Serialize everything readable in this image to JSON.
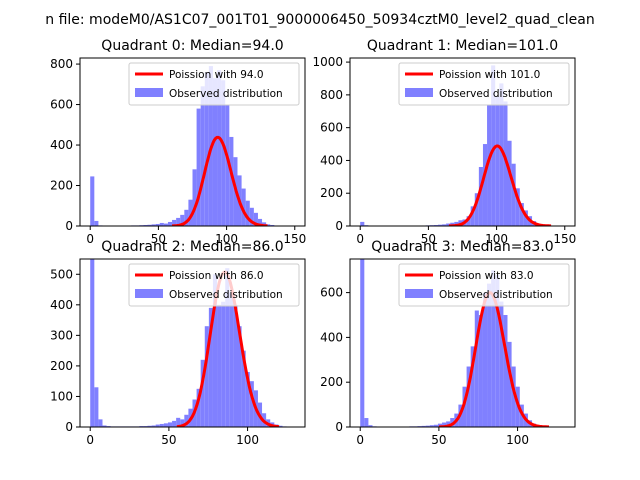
{
  "figure": {
    "suptitle": "n file: modeM0/AS1C07_001T01_9000006450_50934cztM0_level2_quad_clean"
  },
  "colors": {
    "hist": "#8080ff",
    "poisson": "#ff0000",
    "axis": "#000000",
    "background": "#ffffff"
  },
  "chart_data": [
    {
      "type": "bar",
      "title": "Quadrant 0: Median=94.0",
      "median": 94.0,
      "xlim": [
        -7.5,
        157.5
      ],
      "ylim": [
        0,
        830
      ],
      "xticks": [
        0,
        50,
        100,
        150
      ],
      "yticks": [
        0,
        200,
        400,
        600,
        800
      ],
      "bin_width": 3,
      "bins_x": [
        0,
        3,
        6,
        9,
        12,
        15,
        18,
        21,
        24,
        27,
        30,
        33,
        36,
        39,
        42,
        45,
        48,
        51,
        54,
        57,
        60,
        63,
        66,
        69,
        72,
        75,
        78,
        81,
        84,
        87,
        90,
        93,
        96,
        99,
        102,
        105,
        108,
        111,
        114,
        117,
        120,
        123,
        126,
        129,
        132,
        135,
        138,
        141,
        144,
        147,
        150
      ],
      "counts": [
        245,
        25,
        3,
        2,
        2,
        2,
        2,
        2,
        2,
        2,
        3,
        3,
        4,
        5,
        6,
        8,
        10,
        15,
        12,
        20,
        30,
        40,
        55,
        80,
        130,
        280,
        580,
        690,
        760,
        790,
        730,
        770,
        720,
        600,
        440,
        340,
        250,
        185,
        125,
        90,
        65,
        35,
        18,
        8,
        5,
        2,
        2,
        1,
        1,
        0,
        0
      ],
      "poisson_curve": {
        "mean": 94.0,
        "total": 10650,
        "x_range": [
          60,
          130
        ]
      },
      "legend": {
        "entries": [
          "Poission with 94.0",
          "Observed distribution"
        ],
        "position": "top-right"
      }
    },
    {
      "type": "bar",
      "title": "Quadrant 1: Median=101.0",
      "median": 101.0,
      "xlim": [
        -7.5,
        157.5
      ],
      "ylim": [
        0,
        1025
      ],
      "xticks": [
        0,
        50,
        100,
        150
      ],
      "yticks": [
        0,
        200,
        400,
        600,
        800,
        1000
      ],
      "bin_width": 3,
      "bins_x": [
        0,
        3,
        6,
        9,
        12,
        15,
        18,
        21,
        24,
        27,
        30,
        33,
        36,
        39,
        42,
        45,
        48,
        51,
        54,
        57,
        60,
        63,
        66,
        69,
        72,
        75,
        78,
        81,
        84,
        87,
        90,
        93,
        96,
        99,
        102,
        105,
        108,
        111,
        114,
        117,
        120,
        123,
        126,
        129,
        132,
        135,
        138,
        141,
        144,
        147,
        150
      ],
      "counts": [
        25,
        5,
        3,
        2,
        2,
        2,
        2,
        2,
        2,
        2,
        2,
        2,
        2,
        2,
        3,
        3,
        4,
        5,
        6,
        8,
        10,
        15,
        20,
        25,
        35,
        40,
        60,
        120,
        200,
        360,
        500,
        740,
        980,
        790,
        870,
        760,
        520,
        380,
        230,
        140,
        95,
        60,
        30,
        15,
        8,
        4,
        2,
        1,
        0,
        0,
        0
      ],
      "poisson_curve": {
        "mean": 101.0,
        "total": 12300,
        "x_range": [
          65,
          140
        ]
      },
      "legend": {
        "entries": [
          "Poission with 101.0",
          "Observed distribution"
        ],
        "position": "top-right"
      }
    },
    {
      "type": "bar",
      "title": "Quadrant 2: Median=86.0",
      "median": 86.0,
      "xlim": [
        -6.5,
        136.5
      ],
      "ylim": [
        0,
        550
      ],
      "xticks": [
        0,
        50,
        100
      ],
      "yticks": [
        0,
        100,
        200,
        300,
        400,
        500
      ],
      "bin_width": 2.6,
      "bins_x": [
        0,
        2.6,
        5.2,
        7.8,
        10.4,
        13,
        15.6,
        18.2,
        20.8,
        23.4,
        26,
        28.6,
        31.2,
        33.8,
        36.4,
        39,
        41.6,
        44.2,
        46.8,
        49.4,
        52,
        54.6,
        57.2,
        59.8,
        62.4,
        65,
        67.6,
        70.2,
        72.8,
        75.4,
        78,
        80.6,
        83.2,
        85.8,
        88.4,
        91,
        93.6,
        96.2,
        98.8,
        101.4,
        104,
        106.6,
        109.2,
        111.8,
        114.4,
        117,
        119.6,
        122.2,
        124.8,
        127.4
      ],
      "counts": [
        550,
        130,
        25,
        5,
        3,
        2,
        2,
        2,
        2,
        2,
        2,
        2,
        3,
        3,
        4,
        5,
        8,
        10,
        12,
        15,
        20,
        30,
        25,
        40,
        60,
        90,
        125,
        220,
        330,
        390,
        500,
        400,
        410,
        520,
        440,
        400,
        330,
        250,
        180,
        150,
        120,
        80,
        45,
        25,
        15,
        8,
        4,
        2,
        1,
        1
      ],
      "poisson_curve": {
        "mean": 86.0,
        "total": 11800,
        "x_range": [
          55,
          120
        ]
      },
      "legend": {
        "entries": [
          "Poission with 86.0",
          "Observed distribution"
        ],
        "position": "top-right"
      }
    },
    {
      "type": "bar",
      "title": "Quadrant 3: Median=83.0",
      "median": 83.0,
      "xlim": [
        -6.5,
        136.5
      ],
      "ylim": [
        0,
        750
      ],
      "xticks": [
        0,
        50,
        100
      ],
      "yticks": [
        0,
        200,
        400,
        600
      ],
      "bin_width": 2.6,
      "bins_x": [
        0,
        2.6,
        5.2,
        7.8,
        10.4,
        13,
        15.6,
        18.2,
        20.8,
        23.4,
        26,
        28.6,
        31.2,
        33.8,
        36.4,
        39,
        41.6,
        44.2,
        46.8,
        49.4,
        52,
        54.6,
        57.2,
        59.8,
        62.4,
        65,
        67.6,
        70.2,
        72.8,
        75.4,
        78,
        80.6,
        83.2,
        85.8,
        88.4,
        91,
        93.6,
        96.2,
        98.8,
        101.4,
        104,
        106.6,
        109.2,
        111.8,
        114.4,
        117,
        119.6
      ],
      "counts": [
        750,
        40,
        8,
        3,
        2,
        2,
        2,
        2,
        2,
        2,
        2,
        2,
        3,
        3,
        4,
        5,
        6,
        8,
        10,
        15,
        20,
        25,
        40,
        60,
        100,
        180,
        270,
        360,
        520,
        500,
        600,
        640,
        700,
        680,
        560,
        500,
        380,
        270,
        180,
        100,
        60,
        30,
        15,
        8,
        4,
        2,
        1
      ],
      "poisson_curve": {
        "mean": 83.0,
        "total": 13700,
        "x_range": [
          50,
          120
        ]
      },
      "legend": {
        "entries": [
          "Poission with 83.0",
          "Observed distribution"
        ],
        "position": "top-right"
      }
    }
  ]
}
